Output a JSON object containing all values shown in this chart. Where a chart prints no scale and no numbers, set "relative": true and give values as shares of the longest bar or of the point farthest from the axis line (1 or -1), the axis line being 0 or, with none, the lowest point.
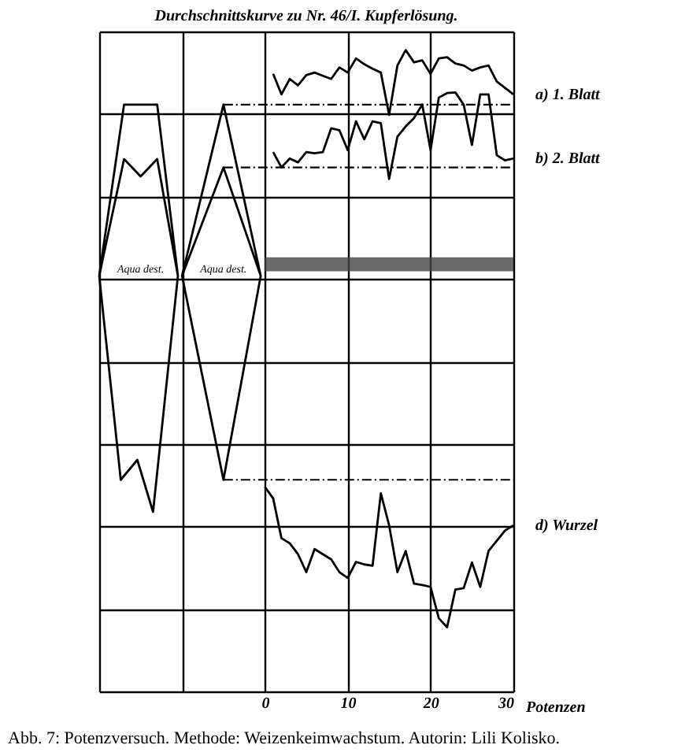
{
  "chart_data": {
    "type": "line",
    "title": "Durchschnittskurve zu Nr. 46/I. Kupferlösung.",
    "xlabel": "Potenzen",
    "relative": true,
    "xlim": [
      -20,
      30
    ],
    "xticks": [
      {
        "value": -20,
        "label": null
      },
      {
        "value": -10,
        "label": null
      },
      0,
      10,
      20,
      30
    ],
    "grid": true,
    "marker": "none",
    "line_style": "solid",
    "series": [
      {
        "name": "a) 1. Blatt",
        "color": "#000000",
        "x": [
          1,
          2,
          3,
          4,
          5,
          6,
          7,
          8,
          9,
          10,
          11,
          12,
          13,
          14,
          15,
          16,
          17,
          18,
          19,
          20,
          21,
          22,
          23,
          24,
          25,
          26,
          27,
          28,
          29,
          30
        ],
        "values": [
          0.963,
          0.931,
          0.955,
          0.945,
          0.961,
          0.965,
          0.96,
          0.955,
          0.973,
          0.965,
          0.987,
          0.978,
          0.971,
          0.965,
          0.899,
          0.976,
          1.0,
          0.981,
          0.984,
          0.963,
          0.987,
          0.989,
          0.979,
          0.976,
          0.968,
          0.973,
          0.976,
          0.951,
          0.941,
          0.931
        ]
      },
      {
        "name": "b) 2. Blatt",
        "color": "#000000",
        "x": [
          1,
          2,
          3,
          4,
          5,
          6,
          7,
          8,
          9,
          10,
          11,
          12,
          13,
          14,
          15,
          16,
          17,
          18,
          19,
          20,
          21,
          22,
          23,
          24,
          25,
          26,
          27,
          28,
          29,
          30
        ],
        "values": [
          0.841,
          0.817,
          0.831,
          0.825,
          0.841,
          0.839,
          0.841,
          0.878,
          0.875,
          0.844,
          0.889,
          0.861,
          0.889,
          0.886,
          0.799,
          0.865,
          0.881,
          0.894,
          0.915,
          0.844,
          0.926,
          0.933,
          0.934,
          0.915,
          0.852,
          0.931,
          0.931,
          0.836,
          0.828,
          0.831
        ]
      },
      {
        "name": "d) Wurzel",
        "color": "#000000",
        "x": [
          0,
          1,
          2,
          3,
          4,
          5,
          6,
          7,
          8,
          9,
          10,
          11,
          12,
          13,
          14,
          15,
          16,
          17,
          18,
          19,
          20,
          21,
          22,
          23,
          24,
          25,
          26,
          27,
          28,
          29,
          30
        ],
        "values": [
          0.319,
          0.301,
          0.239,
          0.231,
          0.214,
          0.186,
          0.222,
          0.214,
          0.206,
          0.186,
          0.177,
          0.202,
          0.198,
          0.196,
          0.309,
          0.259,
          0.186,
          0.219,
          0.168,
          0.166,
          0.163,
          0.114,
          0.1,
          0.159,
          0.161,
          0.201,
          0.163,
          0.219,
          0.235,
          0.251,
          0.259
        ]
      },
      {
        "color": "#000000",
        "x": [
          -20,
          -17,
          -15,
          -13,
          -10.5,
          -13.5,
          -15.4,
          -17.4,
          -20,
          -17,
          -15,
          -13,
          -10.5
        ],
        "values": [
          0.648,
          0.915,
          0.915,
          0.915,
          0.648,
          0.28,
          0.361,
          0.33,
          0.648,
          0.83,
          0.803,
          0.83,
          0.648
        ]
      },
      {
        "color": "#000000",
        "x": [
          -10,
          -5,
          -0.5,
          -5,
          -10,
          -5,
          -0.5
        ],
        "values": [
          0.648,
          0.915,
          0.648,
          0.33,
          0.648,
          0.817,
          0.648
        ]
      },
      {
        "color": "#000000",
        "x": [
          -5,
          30
        ],
        "values": [
          0.915,
          0.915
        ],
        "line_style": "dashed"
      },
      {
        "color": "#000000",
        "x": [
          -5,
          30
        ],
        "values": [
          0.817,
          0.817
        ],
        "line_style": "dashed"
      },
      {
        "color": "#000000",
        "x": [
          -5,
          30
        ],
        "values": [
          0.33,
          0.33
        ],
        "line_style": "dashed"
      }
    ],
    "bands": [
      {
        "axis": "y",
        "from": 0.655,
        "to": 0.677,
        "color": "#444444"
      }
    ],
    "annotations": [
      "Aqua dest.",
      "Aqua dest.",
      "Abb. 7: Potenzversuch. Methode: Weizenkeimwachstum. Autorin: Lili Kolisko."
    ]
  }
}
